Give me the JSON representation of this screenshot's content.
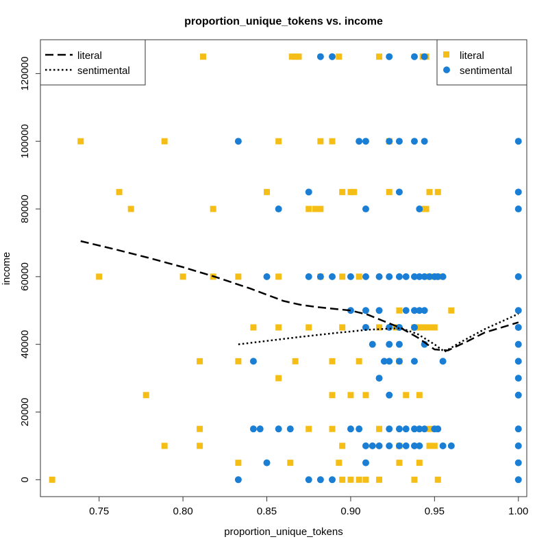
{
  "chart_data": {
    "type": "scatter",
    "title": "proportion_unique_tokens vs. income",
    "xlabel": "proportion_unique_tokens",
    "ylabel": "income",
    "xlim": [
      0.715,
      1.005
    ],
    "ylim": [
      -5000,
      130000
    ],
    "x_ticks": [
      0.75,
      0.8,
      0.85,
      0.9,
      0.95,
      1.0
    ],
    "x_tick_labels": [
      "0.75",
      "0.80",
      "0.85",
      "0.90",
      "0.95",
      "1.00"
    ],
    "y_ticks": [
      0,
      20000,
      40000,
      60000,
      80000,
      100000,
      120000
    ],
    "y_tick_labels": [
      "0",
      "20000",
      "40000",
      "60000",
      "80000",
      "100000",
      "120000"
    ],
    "grid": false,
    "colors": {
      "literal": "#F5BE16",
      "sentimental": "#1A7FD4"
    },
    "series": [
      {
        "name": "literal",
        "marker": "square",
        "color": "#F5BE16",
        "points": [
          [
            0.812,
            125000
          ],
          [
            0.865,
            125000
          ],
          [
            0.867,
            125000
          ],
          [
            0.869,
            125000
          ],
          [
            0.893,
            125000
          ],
          [
            0.917,
            125000
          ],
          [
            0.943,
            125000
          ],
          [
            0.945,
            125000
          ],
          [
            0.963,
            125000
          ],
          [
            0.739,
            100000
          ],
          [
            0.789,
            100000
          ],
          [
            0.857,
            100000
          ],
          [
            0.882,
            100000
          ],
          [
            0.889,
            100000
          ],
          [
            0.923,
            100000
          ],
          [
            0.762,
            85000
          ],
          [
            0.85,
            85000
          ],
          [
            0.895,
            85000
          ],
          [
            0.9,
            85000
          ],
          [
            0.902,
            85000
          ],
          [
            0.923,
            85000
          ],
          [
            0.947,
            85000
          ],
          [
            0.952,
            85000
          ],
          [
            0.769,
            80000
          ],
          [
            0.818,
            80000
          ],
          [
            0.875,
            80000
          ],
          [
            0.879,
            80000
          ],
          [
            0.882,
            80000
          ],
          [
            0.944,
            80000
          ],
          [
            0.945,
            80000
          ],
          [
            0.75,
            60000
          ],
          [
            0.8,
            60000
          ],
          [
            0.818,
            60000
          ],
          [
            0.833,
            60000
          ],
          [
            0.857,
            60000
          ],
          [
            0.882,
            60000
          ],
          [
            0.895,
            60000
          ],
          [
            0.905,
            60000
          ],
          [
            0.947,
            60000
          ],
          [
            0.952,
            60000
          ],
          [
            0.929,
            50000
          ],
          [
            0.96,
            50000
          ],
          [
            0.842,
            45000
          ],
          [
            0.857,
            45000
          ],
          [
            0.875,
            45000
          ],
          [
            0.895,
            45000
          ],
          [
            0.917,
            45000
          ],
          [
            0.927,
            45000
          ],
          [
            0.938,
            45000
          ],
          [
            0.941,
            45000
          ],
          [
            0.944,
            45000
          ],
          [
            0.947,
            45000
          ],
          [
            0.95,
            45000
          ],
          [
            0.81,
            35000
          ],
          [
            0.833,
            35000
          ],
          [
            0.867,
            35000
          ],
          [
            0.889,
            35000
          ],
          [
            0.905,
            35000
          ],
          [
            0.929,
            35000
          ],
          [
            0.857,
            30000
          ],
          [
            0.778,
            25000
          ],
          [
            0.889,
            25000
          ],
          [
            0.9,
            25000
          ],
          [
            0.909,
            25000
          ],
          [
            0.933,
            25000
          ],
          [
            0.941,
            25000
          ],
          [
            0.81,
            15000
          ],
          [
            0.875,
            15000
          ],
          [
            0.889,
            15000
          ],
          [
            0.917,
            15000
          ],
          [
            0.947,
            15000
          ],
          [
            0.789,
            10000
          ],
          [
            0.81,
            10000
          ],
          [
            0.895,
            10000
          ],
          [
            0.929,
            10000
          ],
          [
            0.947,
            10000
          ],
          [
            0.95,
            10000
          ],
          [
            0.833,
            5000
          ],
          [
            0.864,
            5000
          ],
          [
            0.893,
            5000
          ],
          [
            0.929,
            5000
          ],
          [
            0.941,
            5000
          ],
          [
            0.722,
            0
          ],
          [
            0.895,
            0
          ],
          [
            0.9,
            0
          ],
          [
            0.905,
            0
          ],
          [
            0.909,
            0
          ],
          [
            0.917,
            0
          ],
          [
            0.938,
            0
          ],
          [
            0.952,
            0
          ]
        ]
      },
      {
        "name": "sentimental",
        "marker": "circle",
        "color": "#1A7FD4",
        "points": [
          [
            0.882,
            125000
          ],
          [
            0.889,
            125000
          ],
          [
            0.923,
            125000
          ],
          [
            0.938,
            125000
          ],
          [
            0.944,
            125000
          ],
          [
            1.0,
            125000
          ],
          [
            0.833,
            100000
          ],
          [
            0.905,
            100000
          ],
          [
            0.909,
            100000
          ],
          [
            0.923,
            100000
          ],
          [
            0.929,
            100000
          ],
          [
            0.938,
            100000
          ],
          [
            0.944,
            100000
          ],
          [
            1.0,
            100000
          ],
          [
            0.875,
            85000
          ],
          [
            0.929,
            85000
          ],
          [
            1.0,
            85000
          ],
          [
            0.857,
            80000
          ],
          [
            0.909,
            80000
          ],
          [
            0.941,
            80000
          ],
          [
            1.0,
            80000
          ],
          [
            0.85,
            60000
          ],
          [
            0.875,
            60000
          ],
          [
            0.882,
            60000
          ],
          [
            0.889,
            60000
          ],
          [
            0.9,
            60000
          ],
          [
            0.909,
            60000
          ],
          [
            0.917,
            60000
          ],
          [
            0.923,
            60000
          ],
          [
            0.929,
            60000
          ],
          [
            0.933,
            60000
          ],
          [
            0.938,
            60000
          ],
          [
            0.941,
            60000
          ],
          [
            0.944,
            60000
          ],
          [
            0.947,
            60000
          ],
          [
            0.95,
            60000
          ],
          [
            0.952,
            60000
          ],
          [
            0.955,
            60000
          ],
          [
            1.0,
            60000
          ],
          [
            0.9,
            50000
          ],
          [
            0.909,
            50000
          ],
          [
            0.917,
            50000
          ],
          [
            0.933,
            50000
          ],
          [
            0.938,
            50000
          ],
          [
            0.941,
            50000
          ],
          [
            0.944,
            50000
          ],
          [
            1.0,
            50000
          ],
          [
            0.909,
            45000
          ],
          [
            0.923,
            45000
          ],
          [
            0.929,
            45000
          ],
          [
            0.938,
            45000
          ],
          [
            1.0,
            45000
          ],
          [
            0.913,
            40000
          ],
          [
            0.923,
            40000
          ],
          [
            0.929,
            40000
          ],
          [
            0.944,
            40000
          ],
          [
            1.0,
            40000
          ],
          [
            0.842,
            35000
          ],
          [
            0.92,
            35000
          ],
          [
            0.923,
            35000
          ],
          [
            0.929,
            35000
          ],
          [
            0.938,
            35000
          ],
          [
            0.955,
            35000
          ],
          [
            1.0,
            35000
          ],
          [
            0.917,
            30000
          ],
          [
            1.0,
            30000
          ],
          [
            0.923,
            25000
          ],
          [
            1.0,
            25000
          ],
          [
            0.842,
            15000
          ],
          [
            0.846,
            15000
          ],
          [
            0.857,
            15000
          ],
          [
            0.864,
            15000
          ],
          [
            0.9,
            15000
          ],
          [
            0.905,
            15000
          ],
          [
            0.923,
            15000
          ],
          [
            0.929,
            15000
          ],
          [
            0.933,
            15000
          ],
          [
            0.938,
            15000
          ],
          [
            0.941,
            15000
          ],
          [
            0.944,
            15000
          ],
          [
            0.95,
            15000
          ],
          [
            0.952,
            15000
          ],
          [
            1.0,
            15000
          ],
          [
            0.909,
            10000
          ],
          [
            0.913,
            10000
          ],
          [
            0.917,
            10000
          ],
          [
            0.923,
            10000
          ],
          [
            0.929,
            10000
          ],
          [
            0.933,
            10000
          ],
          [
            0.938,
            10000
          ],
          [
            0.941,
            10000
          ],
          [
            0.955,
            10000
          ],
          [
            0.96,
            10000
          ],
          [
            1.0,
            10000
          ],
          [
            0.85,
            5000
          ],
          [
            0.909,
            5000
          ],
          [
            1.0,
            5000
          ],
          [
            0.833,
            0
          ],
          [
            0.875,
            0
          ],
          [
            0.882,
            0
          ],
          [
            0.889,
            0
          ],
          [
            1.0,
            0
          ]
        ]
      }
    ],
    "smoothers": [
      {
        "name": "literal",
        "dash": "long",
        "points": [
          [
            0.739,
            70500
          ],
          [
            0.76,
            68000
          ],
          [
            0.78,
            65500
          ],
          [
            0.8,
            62800
          ],
          [
            0.82,
            59800
          ],
          [
            0.84,
            56500
          ],
          [
            0.86,
            52800
          ],
          [
            0.87,
            51700
          ],
          [
            0.88,
            51000
          ],
          [
            0.9,
            50000
          ],
          [
            0.91,
            48800
          ],
          [
            0.92,
            46800
          ],
          [
            0.93,
            44800
          ],
          [
            0.94,
            42000
          ],
          [
            0.95,
            38500
          ],
          [
            0.958,
            38200
          ],
          [
            0.97,
            41000
          ],
          [
            0.98,
            43500
          ],
          [
            1.0,
            46500
          ]
        ]
      },
      {
        "name": "sentimental",
        "dash": "dotted",
        "points": [
          [
            0.833,
            40000
          ],
          [
            0.85,
            41000
          ],
          [
            0.87,
            42200
          ],
          [
            0.89,
            43300
          ],
          [
            0.91,
            44300
          ],
          [
            0.93,
            44800
          ],
          [
            0.94,
            43000
          ],
          [
            0.95,
            40000
          ],
          [
            0.956,
            37800
          ],
          [
            0.965,
            40500
          ],
          [
            0.98,
            44500
          ],
          [
            1.0,
            49000
          ]
        ]
      }
    ],
    "legend_lines": {
      "placement": "top-left",
      "entries": [
        "literal",
        "sentimental"
      ]
    },
    "legend_points": {
      "placement": "top-right",
      "entries": [
        "literal",
        "sentimental"
      ]
    }
  }
}
